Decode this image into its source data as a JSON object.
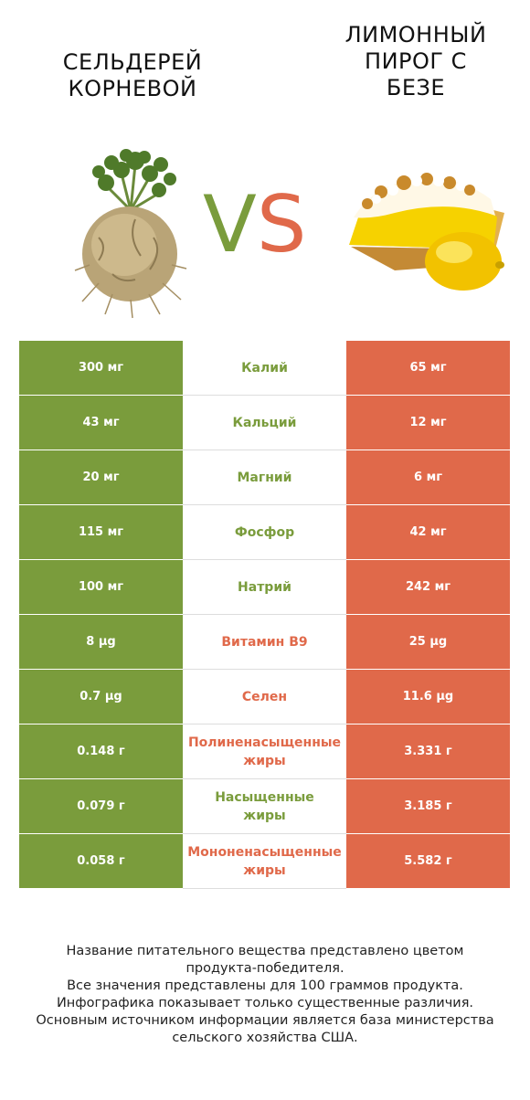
{
  "header": {
    "left_title": "СЕЛЬДЕРЕЙ\nКОРНЕВОЙ",
    "right_title": "ЛИМОННЫЙ\nПИРОГ С\nБЕЗЕ",
    "vs_v": "V",
    "vs_s": "S"
  },
  "colors": {
    "left_accent": "#7a9c3c",
    "right_accent": "#e0694a"
  },
  "rows": [
    {
      "left": "300 мг",
      "nutrient": "Калий",
      "winner": "left",
      "right": "65 мг"
    },
    {
      "left": "43 мг",
      "nutrient": "Кальций",
      "winner": "left",
      "right": "12 мг"
    },
    {
      "left": "20 мг",
      "nutrient": "Магний",
      "winner": "left",
      "right": "6 мг"
    },
    {
      "left": "115 мг",
      "nutrient": "Фосфор",
      "winner": "left",
      "right": "42 мг"
    },
    {
      "left": "100 мг",
      "nutrient": "Натрий",
      "winner": "left",
      "right": "242 мг"
    },
    {
      "left": "8 µg",
      "nutrient": "Витамин B9",
      "winner": "right",
      "right": "25 µg"
    },
    {
      "left": "0.7 µg",
      "nutrient": "Селен",
      "winner": "right",
      "right": "11.6 µg"
    },
    {
      "left": "0.148 г",
      "nutrient": "Полиненасыщенные\nжиры",
      "winner": "right",
      "right": "3.331 г"
    },
    {
      "left": "0.079 г",
      "nutrient": "Насыщенные\nжиры",
      "winner": "left",
      "right": "3.185 г"
    },
    {
      "left": "0.058 г",
      "nutrient": "Мононенасыщенные\nжиры",
      "winner": "right",
      "right": "5.582 г"
    }
  ],
  "footer": {
    "line1": "Название питательного вещества представлено цветом",
    "line2": "продукта-победителя.",
    "line3": "Все значения представлены для 100 граммов продукта.",
    "line4": "Инфографика показывает только существенные различия.",
    "line5": "Основным источником информации является база министерства",
    "line6": "сельского хозяйства США."
  }
}
